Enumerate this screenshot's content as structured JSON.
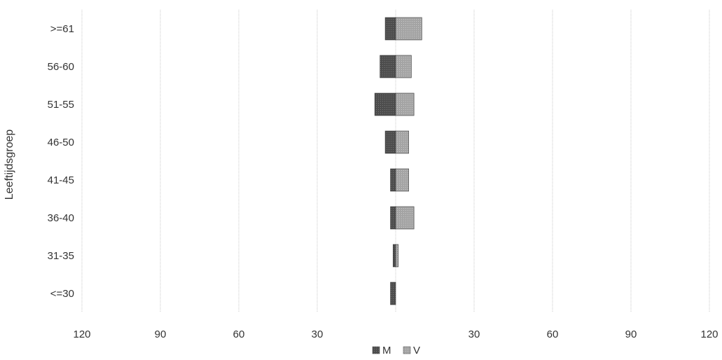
{
  "chart_data": {
    "type": "bar",
    "orientation": "horizontal",
    "layout": "population-pyramid",
    "ylabel": "Leeftijdsgroep",
    "categories": [
      ">=61",
      "56-60",
      "51-55",
      "46-50",
      "41-45",
      "36-40",
      "31-35",
      "<=30"
    ],
    "x_tick_labels": [
      "120",
      "90",
      "60",
      "30",
      "",
      "30",
      "60",
      "90",
      "120"
    ],
    "xlim": [
      -120,
      120
    ],
    "grid": true,
    "legend_position": "bottom",
    "series": [
      {
        "name": "M",
        "side": "left",
        "color": "#555555",
        "values": [
          4,
          6,
          8,
          4,
          2,
          2,
          1,
          2
        ]
      },
      {
        "name": "V",
        "side": "right",
        "color": "#a8a8a8",
        "values": [
          10,
          6,
          7,
          5,
          5,
          7,
          1,
          0
        ]
      }
    ]
  }
}
